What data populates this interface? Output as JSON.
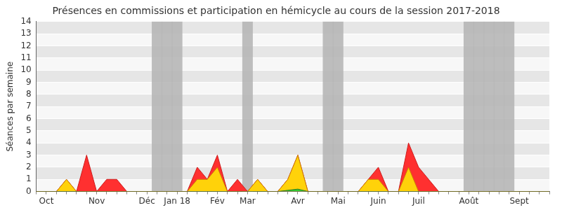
{
  "chart_data": {
    "type": "area",
    "title": "Présences en commissions et participation en hémicycle au cours de la session 2017-2018",
    "y_label": "Séances par semaine",
    "categories": [
      null,
      "Oct",
      null,
      null,
      null,
      null,
      "Nov",
      null,
      null,
      null,
      null,
      "Déc",
      null,
      null,
      "Jan 18",
      null,
      null,
      null,
      "Fév",
      null,
      null,
      "Mar",
      null,
      null,
      null,
      null,
      "Avr",
      null,
      null,
      null,
      "Mai",
      null,
      null,
      null,
      "Juin",
      null,
      null,
      null,
      "Juil",
      null,
      null,
      null,
      null,
      "Août",
      null,
      null,
      null,
      null,
      "Sept",
      null,
      null,
      null
    ],
    "series": [
      {
        "type": "bar",
        "color": "#b3b3b3",
        "values": [
          null,
          null,
          null,
          null,
          null,
          null,
          null,
          null,
          null,
          null,
          null,
          null,
          14,
          14,
          14,
          null,
          null,
          null,
          null,
          null,
          null,
          14,
          null,
          null,
          null,
          null,
          null,
          null,
          null,
          14,
          14,
          null,
          null,
          null,
          null,
          null,
          null,
          null,
          null,
          null,
          null,
          null,
          null,
          14,
          14,
          14,
          14,
          14,
          null,
          null,
          null,
          null
        ]
      },
      {
        "type": "area",
        "color": "#ff3030",
        "values": [
          0,
          0,
          0,
          1,
          0,
          3,
          0,
          1,
          1,
          0,
          0,
          0,
          0,
          0,
          0,
          0,
          2,
          1,
          3,
          0,
          1,
          0,
          1,
          0,
          0,
          1,
          3,
          0,
          0,
          0,
          0,
          0,
          0,
          1,
          2,
          0,
          0,
          4,
          2,
          1,
          0,
          0,
          0,
          0,
          0,
          0,
          0,
          0,
          0,
          0,
          0,
          0
        ]
      },
      {
        "type": "area",
        "color": "#ffd20a",
        "values": [
          0,
          0,
          0,
          1,
          0,
          0,
          0,
          0,
          0,
          0,
          0,
          0,
          0,
          0,
          0,
          0,
          1,
          1,
          2,
          0,
          0,
          0,
          1,
          0,
          0,
          1,
          3,
          0,
          0,
          0,
          0,
          0,
          0,
          1,
          1,
          0,
          0,
          2,
          0,
          0,
          0,
          0,
          0,
          0,
          0,
          0,
          0,
          0,
          0,
          0,
          0,
          0
        ]
      },
      {
        "type": "area",
        "color": "#33cc33",
        "values": [
          0,
          0,
          0,
          0,
          0,
          0,
          0,
          0,
          0,
          0,
          0,
          0,
          0,
          0,
          0,
          0,
          0,
          0,
          0,
          0,
          0,
          0,
          0,
          0,
          0,
          0.1,
          0.2,
          0,
          0,
          0,
          0,
          0,
          0,
          0,
          0,
          0,
          0,
          0,
          0,
          0,
          0,
          0,
          0,
          0,
          0,
          0,
          0,
          0,
          0,
          0,
          0,
          0
        ]
      }
    ],
    "ylim": [
      0,
      14
    ],
    "yticks": [
      0,
      1,
      2,
      3,
      4,
      5,
      6,
      7,
      8,
      9,
      10,
      11,
      12,
      13,
      14
    ],
    "grid": true,
    "marker": "none"
  }
}
